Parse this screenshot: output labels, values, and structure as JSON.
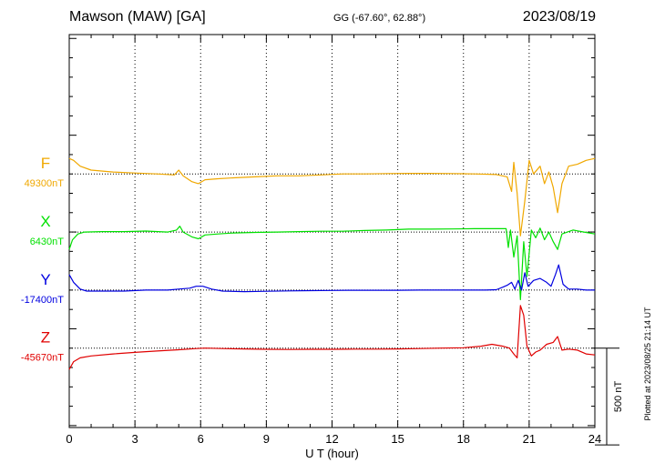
{
  "header": {
    "station": "Mawson (MAW)  [GA]",
    "coordinates": "GG (-67.60°,  62.88°)",
    "date": "2023/08/19"
  },
  "footer": {
    "plotted_note": "Plotted at 2023/08/25 21:14 UT"
  },
  "chart_data": {
    "type": "line",
    "title": "Mawson (MAW)  [GA]",
    "xlabel": "U T (hour)",
    "ylabel": "",
    "xlim": [
      0,
      24
    ],
    "xticks": [
      "0",
      "3",
      "6",
      "9",
      "12",
      "15",
      "18",
      "21",
      "24"
    ],
    "grid": true,
    "scale_bar": {
      "label": "500 nT",
      "value_nT": 500
    },
    "ylim_nT": [
      -1010,
      1020
    ],
    "series": [
      {
        "name": "F",
        "baseline_label": "49300nT",
        "color": "#f0a800",
        "offset_nT": 300,
        "baseline_nT": 49300,
        "points": [
          [
            0,
            49380
          ],
          [
            0.2,
            49370
          ],
          [
            0.5,
            49340
          ],
          [
            1,
            49320
          ],
          [
            2,
            49310
          ],
          [
            3,
            49305
          ],
          [
            4,
            49300
          ],
          [
            4.8,
            49295
          ],
          [
            5.0,
            49320
          ],
          [
            5.2,
            49290
          ],
          [
            5.6,
            49260
          ],
          [
            5.9,
            49250
          ],
          [
            6.2,
            49270
          ],
          [
            6.8,
            49275
          ],
          [
            7.5,
            49280
          ],
          [
            8.5,
            49285
          ],
          [
            9.5,
            49290
          ],
          [
            10.5,
            49290
          ],
          [
            11.5,
            49295
          ],
          [
            12.5,
            49300
          ],
          [
            13.5,
            49300
          ],
          [
            14.5,
            49302
          ],
          [
            15.5,
            49303
          ],
          [
            16.5,
            49303
          ],
          [
            17.5,
            49302
          ],
          [
            18.5,
            49300
          ],
          [
            19.5,
            49297
          ],
          [
            20.0,
            49285
          ],
          [
            20.2,
            49210
          ],
          [
            20.3,
            49360
          ],
          [
            20.45,
            49200
          ],
          [
            20.6,
            48980
          ],
          [
            20.8,
            49160
          ],
          [
            21.0,
            49370
          ],
          [
            21.2,
            49300
          ],
          [
            21.5,
            49340
          ],
          [
            21.7,
            49250
          ],
          [
            21.9,
            49310
          ],
          [
            22.1,
            49230
          ],
          [
            22.3,
            49100
          ],
          [
            22.5,
            49250
          ],
          [
            22.8,
            49340
          ],
          [
            23.2,
            49350
          ],
          [
            23.6,
            49370
          ],
          [
            24,
            49380
          ]
        ]
      },
      {
        "name": "X",
        "baseline_label": "6430nT",
        "color": "#00e000",
        "offset_nT": 0,
        "baseline_nT": 6430,
        "points": [
          [
            0,
            6340
          ],
          [
            0.15,
            6390
          ],
          [
            0.4,
            6420
          ],
          [
            0.7,
            6430
          ],
          [
            1.5,
            6432
          ],
          [
            2.5,
            6432
          ],
          [
            3.5,
            6435
          ],
          [
            4.5,
            6430
          ],
          [
            4.9,
            6440
          ],
          [
            5.05,
            6460
          ],
          [
            5.2,
            6430
          ],
          [
            5.6,
            6405
          ],
          [
            5.9,
            6395
          ],
          [
            6.2,
            6415
          ],
          [
            6.8,
            6420
          ],
          [
            7.5,
            6425
          ],
          [
            8.5,
            6428
          ],
          [
            9.5,
            6430
          ],
          [
            10.5,
            6432
          ],
          [
            11.5,
            6434
          ],
          [
            12.5,
            6434
          ],
          [
            13.5,
            6438
          ],
          [
            14.5,
            6440
          ],
          [
            15.5,
            6445
          ],
          [
            16.5,
            6445
          ],
          [
            17.5,
            6446
          ],
          [
            18.5,
            6447
          ],
          [
            19.5,
            6447
          ],
          [
            19.95,
            6447
          ],
          [
            20.05,
            6350
          ],
          [
            20.15,
            6440
          ],
          [
            20.3,
            6300
          ],
          [
            20.45,
            6410
          ],
          [
            20.6,
            6080
          ],
          [
            20.75,
            6380
          ],
          [
            20.9,
            6200
          ],
          [
            21.1,
            6440
          ],
          [
            21.3,
            6400
          ],
          [
            21.5,
            6450
          ],
          [
            21.7,
            6390
          ],
          [
            21.9,
            6430
          ],
          [
            22.1,
            6380
          ],
          [
            22.3,
            6340
          ],
          [
            22.5,
            6420
          ],
          [
            23.0,
            6440
          ],
          [
            23.5,
            6430
          ],
          [
            24,
            6420
          ]
        ]
      },
      {
        "name": "Y",
        "baseline_label": "-17400nT",
        "color": "#0000e0",
        "offset_nT": -300,
        "baseline_nT": -17400,
        "points": [
          [
            0,
            -17320
          ],
          [
            0.2,
            -17360
          ],
          [
            0.5,
            -17395
          ],
          [
            0.8,
            -17405
          ],
          [
            1.5,
            -17405
          ],
          [
            2.5,
            -17405
          ],
          [
            3.5,
            -17400
          ],
          [
            4.5,
            -17400
          ],
          [
            5.0,
            -17395
          ],
          [
            5.5,
            -17390
          ],
          [
            5.8,
            -17380
          ],
          [
            6.1,
            -17380
          ],
          [
            6.5,
            -17395
          ],
          [
            7.0,
            -17405
          ],
          [
            8.0,
            -17408
          ],
          [
            9.0,
            -17406
          ],
          [
            10,
            -17404
          ],
          [
            11,
            -17403
          ],
          [
            12,
            -17402
          ],
          [
            13,
            -17401
          ],
          [
            14,
            -17401
          ],
          [
            15,
            -17401
          ],
          [
            16,
            -17400
          ],
          [
            17,
            -17400
          ],
          [
            18,
            -17400
          ],
          [
            19,
            -17400
          ],
          [
            19.5,
            -17398
          ],
          [
            19.8,
            -17385
          ],
          [
            20.0,
            -17375
          ],
          [
            20.2,
            -17360
          ],
          [
            20.35,
            -17395
          ],
          [
            20.5,
            -17350
          ],
          [
            20.65,
            -17400
          ],
          [
            20.8,
            -17310
          ],
          [
            20.95,
            -17380
          ],
          [
            21.2,
            -17350
          ],
          [
            21.5,
            -17340
          ],
          [
            21.8,
            -17360
          ],
          [
            22.0,
            -17380
          ],
          [
            22.2,
            -17320
          ],
          [
            22.35,
            -17270
          ],
          [
            22.55,
            -17370
          ],
          [
            22.8,
            -17395
          ],
          [
            23.2,
            -17395
          ],
          [
            23.6,
            -17400
          ],
          [
            24,
            -17400
          ]
        ]
      },
      {
        "name": "Z",
        "baseline_label": "-45670nT",
        "color": "#e00000",
        "offset_nT": -600,
        "baseline_nT": -45670,
        "points": [
          [
            0,
            -45780
          ],
          [
            0.2,
            -45740
          ],
          [
            0.5,
            -45720
          ],
          [
            1,
            -45710
          ],
          [
            2,
            -45700
          ],
          [
            3,
            -45692
          ],
          [
            4,
            -45685
          ],
          [
            5,
            -45678
          ],
          [
            5.8,
            -45672
          ],
          [
            6.2,
            -45670
          ],
          [
            7,
            -45672
          ],
          [
            8,
            -45674
          ],
          [
            9,
            -45676
          ],
          [
            10,
            -45677
          ],
          [
            11,
            -45676
          ],
          [
            12,
            -45676
          ],
          [
            13,
            -45675
          ],
          [
            14,
            -45675
          ],
          [
            15,
            -45674
          ],
          [
            16,
            -45672
          ],
          [
            17,
            -45670
          ],
          [
            18,
            -45668
          ],
          [
            18.8,
            -45660
          ],
          [
            19.3,
            -45650
          ],
          [
            19.8,
            -45660
          ],
          [
            20.1,
            -45670
          ],
          [
            20.3,
            -45700
          ],
          [
            20.45,
            -45720
          ],
          [
            20.6,
            -45450
          ],
          [
            20.75,
            -45500
          ],
          [
            20.9,
            -45660
          ],
          [
            21.1,
            -45710
          ],
          [
            21.3,
            -45690
          ],
          [
            21.5,
            -45680
          ],
          [
            21.8,
            -45650
          ],
          [
            22.1,
            -45640
          ],
          [
            22.3,
            -45610
          ],
          [
            22.5,
            -45680
          ],
          [
            22.8,
            -45675
          ],
          [
            23.2,
            -45680
          ],
          [
            23.6,
            -45700
          ],
          [
            24,
            -45705
          ]
        ]
      }
    ]
  }
}
